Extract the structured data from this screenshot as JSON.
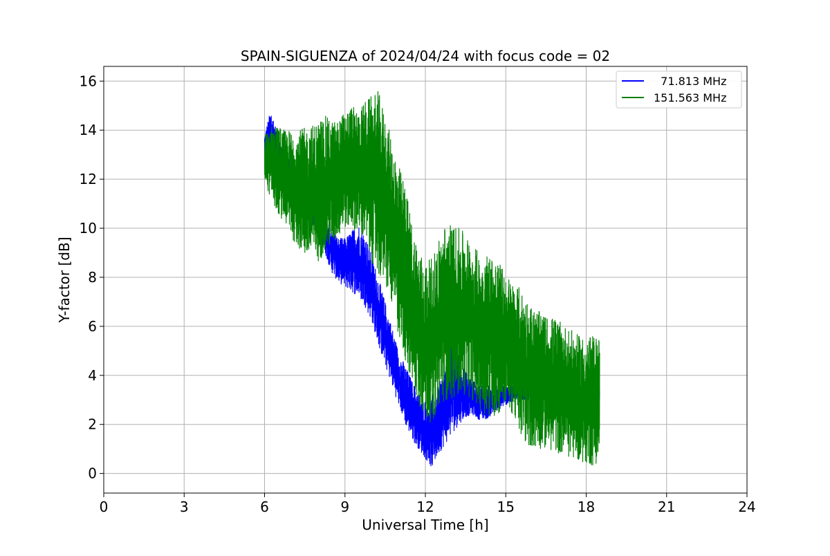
{
  "chart_data": {
    "type": "line",
    "title": "SPAIN-SIGUENZA of 2024/04/24 with focus code = 02",
    "xlabel": "Universal Time [h]",
    "ylabel": "Y-factor [dB]",
    "xlim": [
      0,
      24
    ],
    "ylim": [
      -0.8,
      16.6
    ],
    "xticks": [
      0,
      3,
      6,
      9,
      12,
      15,
      18,
      21,
      24
    ],
    "yticks": [
      0,
      2,
      4,
      6,
      8,
      10,
      12,
      14,
      16
    ],
    "grid": true,
    "legend_position": "top-right",
    "series": [
      {
        "name": "  71.813 MHz",
        "color": "#0000ff",
        "x": [
          6.0,
          6.25,
          6.5,
          6.75,
          7.0,
          7.25,
          7.5,
          7.75,
          8.0,
          8.25,
          8.5,
          8.75,
          9.0,
          9.25,
          9.5,
          9.75,
          10.0,
          10.25,
          10.5,
          10.75,
          11.0,
          11.25,
          11.5,
          11.75,
          12.0,
          12.25,
          12.5,
          12.75,
          13.0,
          13.25,
          13.5,
          13.75,
          14.0,
          14.25,
          14.5,
          14.75,
          15.0,
          15.25,
          15.5,
          15.75,
          16.0,
          16.25,
          16.5,
          16.75,
          17.0,
          17.25,
          17.5,
          17.75,
          18.0,
          18.25,
          18.5
        ],
        "y_low": [
          12.2,
          12.5,
          12.0,
          11.8,
          11.5,
          11.0,
          10.6,
          10.2,
          9.8,
          9.0,
          8.2,
          7.8,
          7.6,
          7.4,
          7.2,
          6.8,
          6.2,
          5.2,
          4.4,
          3.6,
          2.8,
          2.0,
          1.4,
          1.0,
          0.6,
          0.2,
          0.8,
          1.2,
          1.6,
          2.0,
          2.3,
          2.4,
          2.2,
          2.2,
          2.4,
          2.6,
          2.8,
          2.9,
          3.0,
          3.0,
          3.0,
          3.0,
          3.0,
          3.0,
          2.9,
          2.8,
          2.8,
          2.8,
          2.8,
          2.8,
          2.8
        ],
        "y_high": [
          13.9,
          14.9,
          13.8,
          13.2,
          12.8,
          12.3,
          11.8,
          11.4,
          10.9,
          10.6,
          10.0,
          9.6,
          9.6,
          9.9,
          10.2,
          9.8,
          8.9,
          8.0,
          7.0,
          6.0,
          5.0,
          4.4,
          3.8,
          3.3,
          3.0,
          3.2,
          3.6,
          4.4,
          5.6,
          4.8,
          4.2,
          3.8,
          3.6,
          3.6,
          3.6,
          3.6,
          3.6,
          3.6,
          3.6,
          3.6,
          3.6,
          3.6,
          3.6,
          3.6,
          3.6,
          3.6,
          3.6,
          3.6,
          3.6,
          3.6,
          3.6
        ]
      },
      {
        "name": "151.563 MHz",
        "color": "#008000",
        "x": [
          6.0,
          6.25,
          6.5,
          6.75,
          7.0,
          7.25,
          7.5,
          7.75,
          8.0,
          8.25,
          8.5,
          8.75,
          9.0,
          9.25,
          9.5,
          9.75,
          10.0,
          10.25,
          10.5,
          10.75,
          11.0,
          11.25,
          11.5,
          11.75,
          12.0,
          12.25,
          12.5,
          12.75,
          13.0,
          13.25,
          13.5,
          13.75,
          14.0,
          14.25,
          14.5,
          14.75,
          15.0,
          15.25,
          15.5,
          15.75,
          16.0,
          16.25,
          16.5,
          16.75,
          17.0,
          17.25,
          17.5,
          17.75,
          18.0,
          18.25,
          18.5
        ],
        "y_low": [
          11.8,
          11.2,
          10.6,
          10.2,
          9.6,
          9.2,
          8.8,
          8.6,
          8.6,
          9.0,
          9.2,
          9.6,
          10.0,
          10.0,
          9.8,
          9.4,
          8.6,
          8.0,
          7.6,
          6.8,
          5.6,
          4.6,
          3.6,
          2.8,
          2.2,
          2.0,
          2.8,
          3.0,
          3.0,
          3.2,
          3.2,
          3.0,
          2.6,
          2.4,
          2.2,
          2.4,
          2.8,
          2.4,
          1.6,
          1.2,
          1.0,
          1.0,
          1.0,
          0.9,
          0.8,
          0.7,
          0.6,
          0.5,
          0.4,
          0.3,
          0.5
        ],
        "y_high": [
          13.8,
          14.2,
          14.2,
          14.0,
          14.0,
          14.0,
          14.1,
          14.2,
          14.4,
          14.6,
          14.4,
          14.4,
          14.8,
          15.0,
          14.8,
          15.2,
          15.4,
          15.6,
          14.6,
          13.6,
          12.6,
          11.8,
          10.2,
          9.2,
          8.6,
          8.8,
          9.6,
          10.2,
          10.2,
          10.0,
          9.8,
          9.4,
          9.0,
          9.0,
          9.0,
          8.6,
          8.2,
          7.8,
          7.6,
          7.2,
          6.8,
          6.6,
          6.4,
          6.4,
          6.2,
          6.0,
          5.8,
          5.6,
          5.6,
          5.6,
          5.6
        ]
      }
    ]
  }
}
